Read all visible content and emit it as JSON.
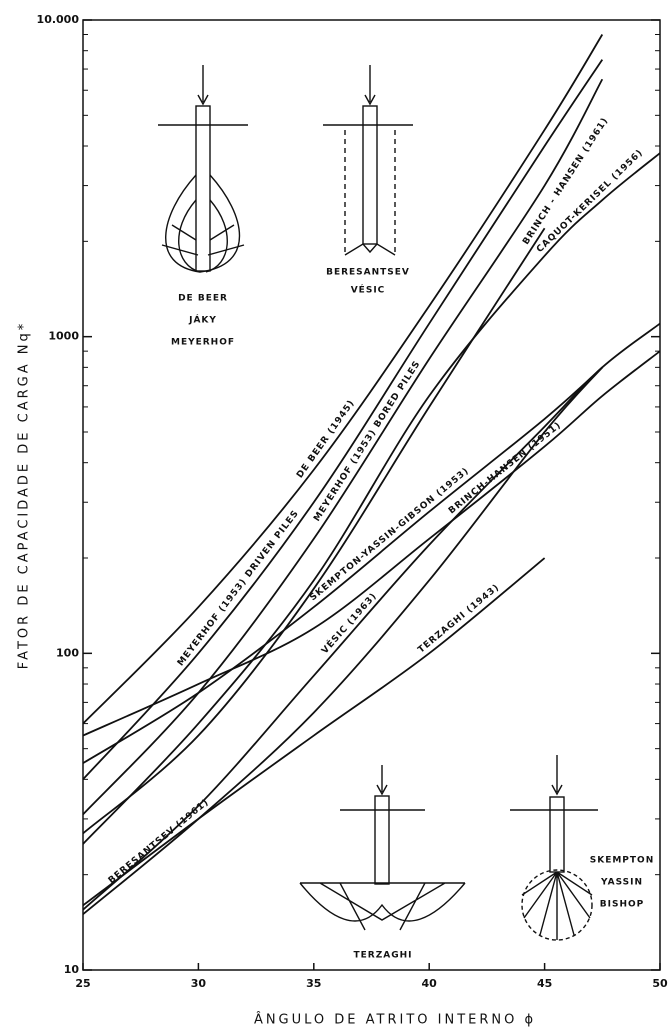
{
  "chart_data": {
    "type": "line",
    "xlabel": "ÂNGULO DE ATRITO INTERNO ϕ",
    "ylabel": "FATOR DE CAPACIDADE DE CARGA  Nq*",
    "log_y": true,
    "minor_ticks": true,
    "x": [
      25,
      30,
      35,
      40,
      45,
      47.5,
      50
    ],
    "xlim": [
      25,
      50
    ],
    "xticks": [
      25,
      30,
      35,
      40,
      45,
      50
    ],
    "ylim": [
      10,
      10000
    ],
    "yticks": [
      10,
      100,
      1000,
      {
        "value": 10000,
        "label": "10.000"
      }
    ],
    "series": [
      {
        "name": "DE BEER (1945)",
        "color": "#111",
        "values": [
          60,
          140,
          380,
          1250,
          4500,
          9000,
          null
        ]
      },
      {
        "name": "MEYERHOF (1953) DRIVEN PILES",
        "color": "#111",
        "values": [
          40,
          100,
          300,
          1100,
          4000,
          7500,
          null
        ]
      },
      {
        "name": "MEYERHOF (1953) BORED PILES",
        "color": "#111",
        "values": [
          31,
          75,
          230,
          850,
          3000,
          6500,
          null
        ]
      },
      {
        "name": "BRINCH - HANSEN (1961)",
        "color": "#111",
        "values": [
          27,
          55,
          160,
          600,
          2200,
          null,
          null
        ]
      },
      {
        "name": "CAQUOT-KERISEL (1956)",
        "color": "#111",
        "values": [
          25,
          60,
          170,
          650,
          1800,
          2700,
          3800
        ]
      },
      {
        "name": "SKEMPTON-YASSIN-GIBSON (1953)",
        "color": "#111",
        "values": [
          45,
          75,
          140,
          280,
          550,
          800,
          null
        ]
      },
      {
        "name": "BRINCH-HANSEN (1951)",
        "color": "#111",
        "values": [
          55,
          80,
          120,
          230,
          450,
          650,
          900
        ]
      },
      {
        "name": "VÉSIC (1963)",
        "color": "#111",
        "values": [
          15.5,
          33,
          85,
          220,
          520,
          800,
          1100
        ]
      },
      {
        "name": "TERZAGHI (1943)",
        "color": "#111",
        "values": [
          16,
          30,
          55,
          100,
          200,
          null,
          null
        ]
      },
      {
        "name": "BERESANTSEV (1961)",
        "color": "#111",
        "values": [
          15,
          30,
          65,
          170,
          500,
          800,
          null
        ]
      }
    ],
    "annotations": [
      "DE BEER",
      "JÁKY",
      "MEYERHOF",
      "BERESANTSEV",
      "VÉSIC",
      "TERZAGHI",
      "SKEMPTON",
      "YASSIN",
      "BISHOP"
    ]
  }
}
